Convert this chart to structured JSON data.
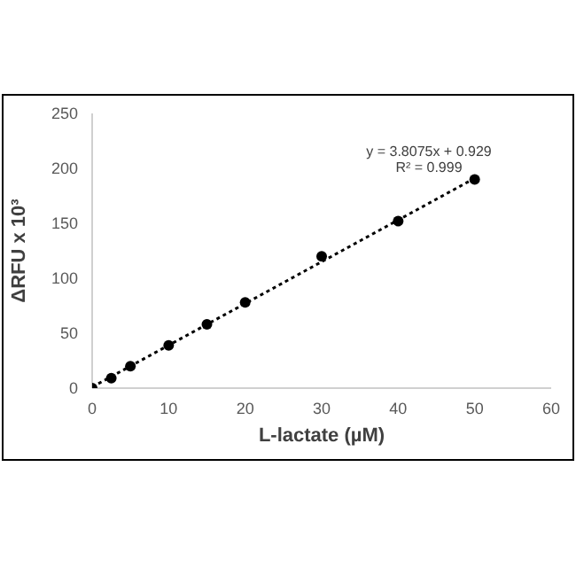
{
  "chart_data": {
    "type": "scatter",
    "xlabel": "L-lactate (µM)",
    "ylabel": "ΔRFU x 10³",
    "xlim": [
      0,
      60
    ],
    "xticks": [
      0,
      10,
      20,
      30,
      40,
      50,
      60
    ],
    "ylim": [
      0,
      250
    ],
    "yticks": [
      0,
      50,
      100,
      150,
      200,
      250
    ],
    "grid": false,
    "marker": "circle",
    "annotations": [
      "y = 3.8075x + 0.929",
      "R² = 0.999"
    ],
    "series": [
      {
        "color": "#000000",
        "x": [
          0,
          2.5,
          5,
          10,
          15,
          20,
          30,
          40,
          50
        ],
        "values": [
          0,
          9,
          20,
          39,
          58,
          78,
          120,
          152,
          190
        ]
      },
      {
        "type": "line",
        "color": "#000000",
        "x": [
          0,
          50
        ],
        "values": [
          1,
          191
        ],
        "marker": "none",
        "line_style": "dotted"
      }
    ]
  }
}
